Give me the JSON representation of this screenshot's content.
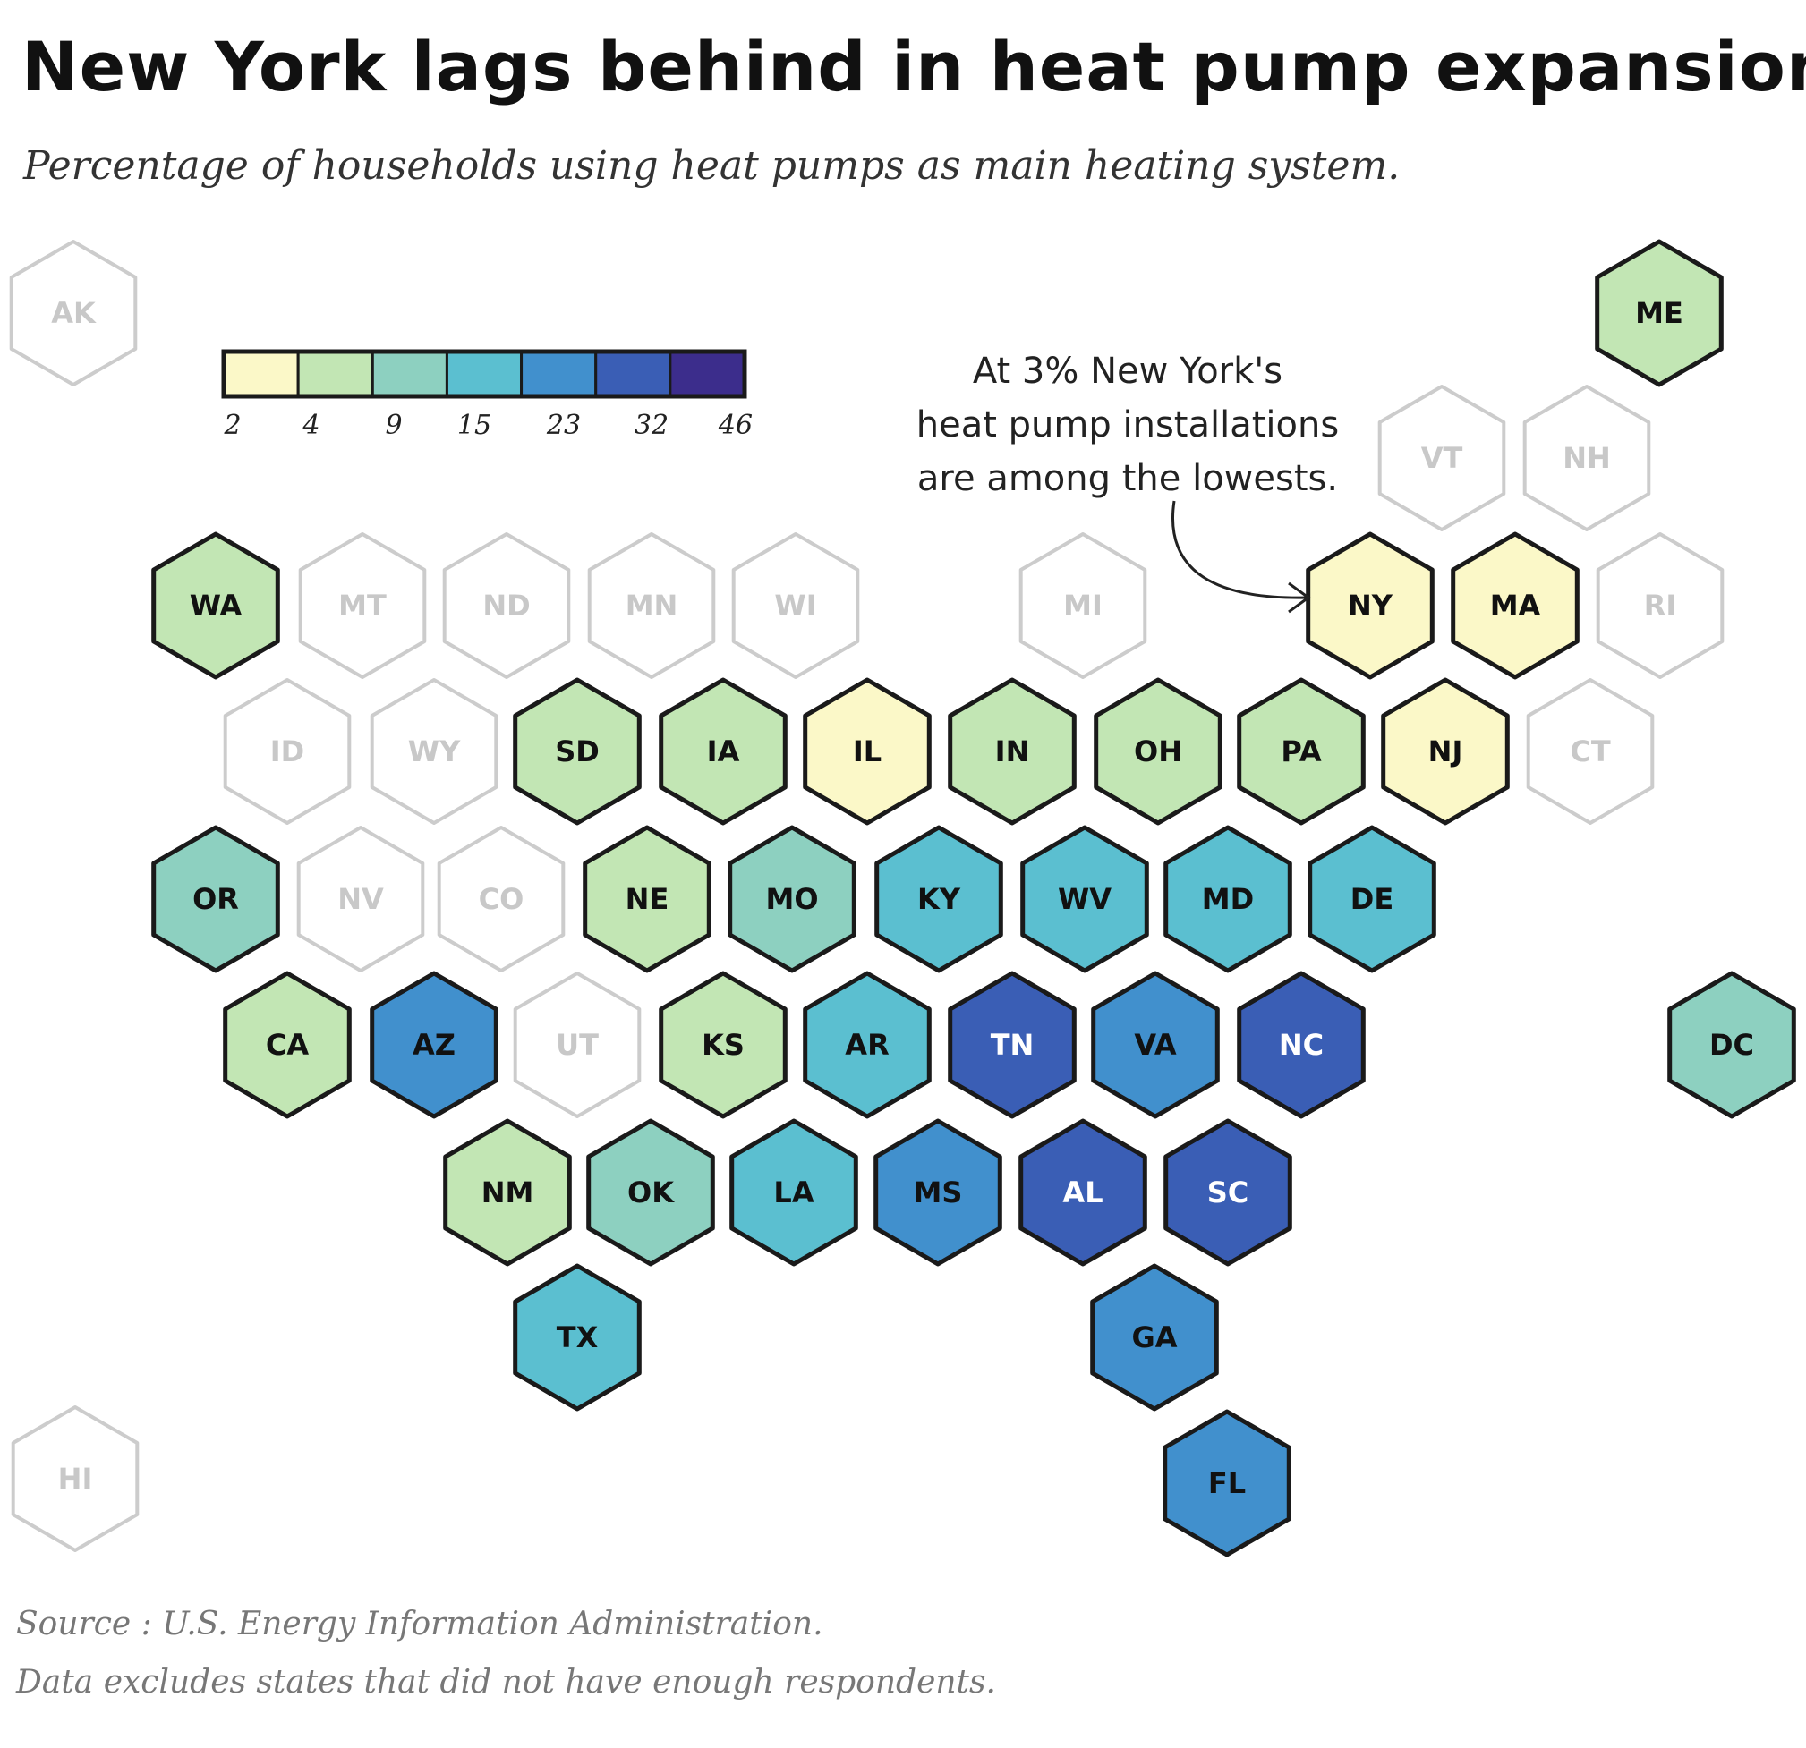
{
  "title": "New York lags behind in heat pump expansion.",
  "subtitle": "Percentage of households using heat pumps as main heating system.",
  "annotation": {
    "line1": "At 3% New York's",
    "line2": "heat pump installations",
    "line3": "are among the lowests."
  },
  "source": "Source : U.S. Energy Information Administration.",
  "footnote": "Data excludes states that did not have enough respondents.",
  "legend": {
    "breaks": [
      "2",
      "4",
      "9",
      "15",
      "23",
      "32",
      "46"
    ],
    "colors": [
      "#fbf8c8",
      "#c2e6b4",
      "#8dd0c0",
      "#5bbfd0",
      "#4190cd",
      "#3a5eb5",
      "#3c2d8c"
    ]
  },
  "colors": {
    "no_data_stroke": "#cccccc",
    "no_data_text": "#c8c8c8",
    "outline": "#1a1a1a"
  },
  "chart_data": {
    "type": "hex tile map",
    "metric": "Percentage of households using heat pumps as main heating system",
    "bins": [
      "2-4",
      "4-9",
      "9-15",
      "15-23",
      "23-32",
      "32-46"
    ],
    "states": [
      {
        "id": "AK",
        "bin": null
      },
      {
        "id": "ME",
        "bin": 1
      },
      {
        "id": "VT",
        "bin": null
      },
      {
        "id": "NH",
        "bin": null
      },
      {
        "id": "WA",
        "bin": 1
      },
      {
        "id": "MT",
        "bin": null
      },
      {
        "id": "ND",
        "bin": null
      },
      {
        "id": "MN",
        "bin": null
      },
      {
        "id": "WI",
        "bin": null
      },
      {
        "id": "MI",
        "bin": null
      },
      {
        "id": "NY",
        "bin": 0,
        "value": 3
      },
      {
        "id": "MA",
        "bin": 0
      },
      {
        "id": "RI",
        "bin": null
      },
      {
        "id": "ID",
        "bin": null
      },
      {
        "id": "WY",
        "bin": null
      },
      {
        "id": "SD",
        "bin": 1
      },
      {
        "id": "IA",
        "bin": 1
      },
      {
        "id": "IL",
        "bin": 0
      },
      {
        "id": "IN",
        "bin": 1
      },
      {
        "id": "OH",
        "bin": 1
      },
      {
        "id": "PA",
        "bin": 1
      },
      {
        "id": "NJ",
        "bin": 0
      },
      {
        "id": "CT",
        "bin": null
      },
      {
        "id": "OR",
        "bin": 2
      },
      {
        "id": "NV",
        "bin": null
      },
      {
        "id": "CO",
        "bin": null
      },
      {
        "id": "NE",
        "bin": 1
      },
      {
        "id": "MO",
        "bin": 2
      },
      {
        "id": "KY",
        "bin": 3
      },
      {
        "id": "WV",
        "bin": 3
      },
      {
        "id": "MD",
        "bin": 3
      },
      {
        "id": "DE",
        "bin": 3
      },
      {
        "id": "CA",
        "bin": 1
      },
      {
        "id": "AZ",
        "bin": 4
      },
      {
        "id": "UT",
        "bin": null
      },
      {
        "id": "KS",
        "bin": 1
      },
      {
        "id": "AR",
        "bin": 3
      },
      {
        "id": "TN",
        "bin": 5
      },
      {
        "id": "VA",
        "bin": 4
      },
      {
        "id": "NC",
        "bin": 5
      },
      {
        "id": "DC",
        "bin": 2
      },
      {
        "id": "NM",
        "bin": 1
      },
      {
        "id": "OK",
        "bin": 2
      },
      {
        "id": "LA",
        "bin": 3
      },
      {
        "id": "MS",
        "bin": 4
      },
      {
        "id": "AL",
        "bin": 5
      },
      {
        "id": "SC",
        "bin": 5
      },
      {
        "id": "TX",
        "bin": 3
      },
      {
        "id": "GA",
        "bin": 4
      },
      {
        "id": "HI",
        "bin": null
      },
      {
        "id": "FL",
        "bin": 4
      }
    ]
  }
}
